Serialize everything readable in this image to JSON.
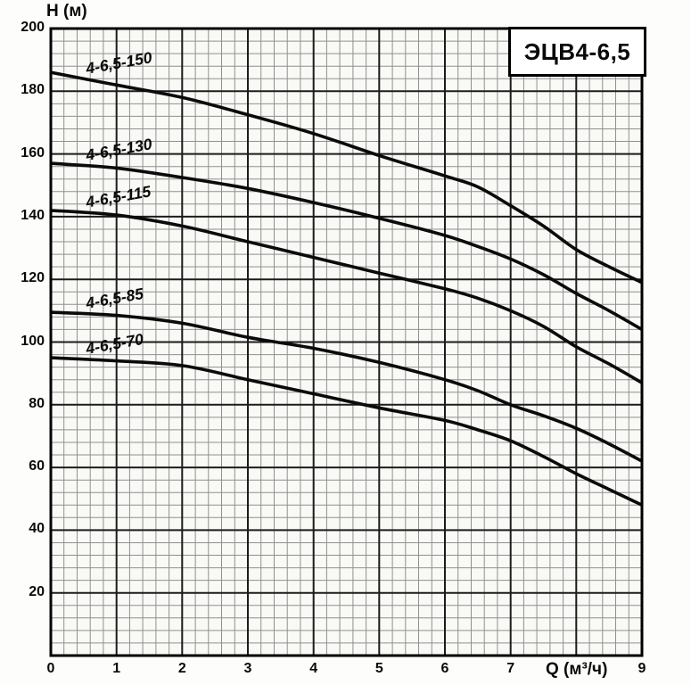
{
  "chart_data": {
    "type": "line",
    "title": "ЭЦВ4-6,5",
    "xlabel": "Q (м³/ч)",
    "ylabel": "H (м)",
    "xlim": [
      0,
      9
    ],
    "ylim": [
      0,
      200
    ],
    "x_major_step": 1,
    "x_minor_step": 0.2,
    "y_major_step": 20,
    "y_minor_step": 4,
    "grid": "fine graph-paper grid, minor and major lines",
    "legend_position": "labels inline above each curve",
    "x_tick_labels": [
      "0",
      "1",
      "2",
      "3",
      "4",
      "5",
      "6",
      "7",
      "9"
    ],
    "y_tick_labels": [
      "200",
      "180",
      "160",
      "140",
      "120",
      "100",
      "80",
      "60",
      "40",
      "20"
    ],
    "series": [
      {
        "name": "4-6,5-150",
        "points": [
          [
            0,
            186
          ],
          [
            1,
            182
          ],
          [
            2,
            178
          ],
          [
            3,
            172.5
          ],
          [
            4,
            166.5
          ],
          [
            5,
            159.5
          ],
          [
            6,
            153
          ],
          [
            6.5,
            149.5
          ],
          [
            7,
            143.5
          ],
          [
            7.5,
            137
          ],
          [
            8,
            129.5
          ],
          [
            8.5,
            124
          ],
          [
            9,
            119
          ]
        ]
      },
      {
        "name": "4-6,5-130",
        "points": [
          [
            0,
            157
          ],
          [
            1,
            155.5
          ],
          [
            2,
            152.5
          ],
          [
            3,
            149
          ],
          [
            4,
            144.5
          ],
          [
            5,
            139.5
          ],
          [
            6,
            134
          ],
          [
            6.5,
            130.5
          ],
          [
            7,
            126.5
          ],
          [
            7.5,
            121.5
          ],
          [
            8,
            115.5
          ],
          [
            8.5,
            110
          ],
          [
            9,
            104
          ]
        ]
      },
      {
        "name": "4-6,5-115",
        "points": [
          [
            0,
            142
          ],
          [
            1,
            140.5
          ],
          [
            2,
            137
          ],
          [
            3,
            132
          ],
          [
            4,
            127
          ],
          [
            5,
            122
          ],
          [
            6,
            117
          ],
          [
            6.5,
            114
          ],
          [
            7,
            110
          ],
          [
            7.5,
            105
          ],
          [
            8,
            98.5
          ],
          [
            8.5,
            93
          ],
          [
            9,
            87
          ]
        ]
      },
      {
        "name": "4-6,5-85",
        "points": [
          [
            0,
            109.5
          ],
          [
            1,
            108.5
          ],
          [
            2,
            106
          ],
          [
            3,
            101.5
          ],
          [
            4,
            98
          ],
          [
            5,
            93.5
          ],
          [
            6,
            88
          ],
          [
            6.5,
            84.5
          ],
          [
            7,
            80
          ],
          [
            7.5,
            76.5
          ],
          [
            8,
            72.5
          ],
          [
            8.5,
            67.5
          ],
          [
            9,
            62
          ]
        ]
      },
      {
        "name": "4-6,5-70",
        "points": [
          [
            0,
            95
          ],
          [
            1,
            94
          ],
          [
            2,
            92.5
          ],
          [
            3,
            88
          ],
          [
            4,
            83.5
          ],
          [
            5,
            79
          ],
          [
            6,
            75
          ],
          [
            6.5,
            72
          ],
          [
            7,
            68.5
          ],
          [
            7.5,
            63.5
          ],
          [
            8,
            58
          ],
          [
            8.5,
            53
          ],
          [
            9,
            48
          ]
        ]
      }
    ],
    "colors": {
      "curve": "#0b0b0b",
      "grid_minor": "#909090",
      "grid_major": "#1c1c1c",
      "border": "#000000",
      "plot_bg": "#f9f9f6",
      "title_box_bg": "#ffffff"
    }
  }
}
